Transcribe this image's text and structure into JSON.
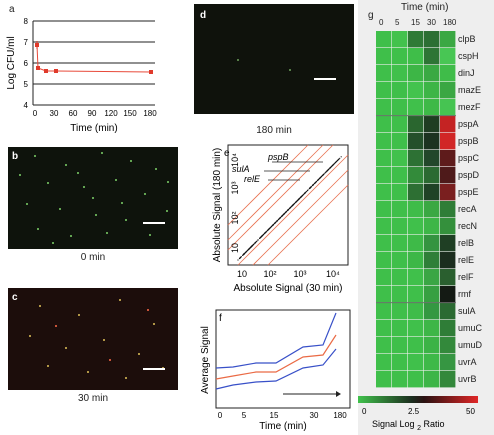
{
  "panel_labels": {
    "a": "a",
    "b": "b",
    "c": "c",
    "d": "d",
    "e": "e",
    "f": "f",
    "g": "g"
  },
  "panel_a": {
    "ylabel": "Log CFU/ml",
    "xlabel": "Time (min)",
    "yticks": [
      "4",
      "5",
      "6",
      "7",
      "8"
    ],
    "xticks": [
      "0",
      "30",
      "60",
      "90",
      "120",
      "150",
      "180"
    ]
  },
  "micrographs": {
    "b_caption": "0 min",
    "c_caption": "30 min",
    "d_caption": "180 min"
  },
  "panel_e": {
    "xlabel": "Absolute Signal (30 min)",
    "ylabel": "Absolute Signal (180 min)",
    "ticks": [
      "10",
      "10²",
      "10³",
      "10⁴"
    ],
    "genes": [
      "pspB",
      "sulA",
      "relE"
    ]
  },
  "panel_f": {
    "ylabel": "Average Signal",
    "xlabel": "Time (min)",
    "xticks": [
      "0",
      "5",
      "15",
      "30",
      "180"
    ]
  },
  "panel_g": {
    "title": "Time (min)",
    "time_points": [
      "0",
      "5",
      "15",
      "30",
      "180"
    ],
    "genes": [
      "clpB",
      "cspH",
      "dinJ",
      "mazE",
      "mezF",
      "pspA",
      "pspB",
      "pspC",
      "pspD",
      "pspE",
      "recA",
      "recN",
      "relB",
      "relE",
      "relF",
      "rmf",
      "sulA",
      "umuC",
      "umuD",
      "uvrA",
      "uvrB"
    ],
    "colorbar_ticks": [
      "0",
      "2.5",
      "50"
    ],
    "colorbar_label": "Signal Log",
    "colorbar_label_sub": "2",
    "colorbar_label_end": " Ratio",
    "heat_colors": [
      [
        "#3fbf4a",
        "#43c24d",
        "#2f7a36",
        "#2c6f33",
        "#3aa843"
      ],
      [
        "#3fbf4a",
        "#3fc04a",
        "#3fbe49",
        "#2e7535",
        "#48c654"
      ],
      [
        "#3fbf4a",
        "#40c04b",
        "#3db646",
        "#3aa943",
        "#3fbc49"
      ],
      [
        "#3fbf4a",
        "#3fbf4a",
        "#43c34e",
        "#3db546",
        "#3aa743"
      ],
      [
        "#3fbf4a",
        "#3fbf4a",
        "#40c04b",
        "#3eb947",
        "#46c452"
      ],
      [
        "#3fbf4a",
        "#3fbf4a",
        "#2a662f",
        "#1f3d22",
        "#c42323"
      ],
      [
        "#3fbf4a",
        "#3fbf4a",
        "#24502a",
        "#1c3320",
        "#d12626"
      ],
      [
        "#3fbf4a",
        "#41c14c",
        "#2d7134",
        "#22472a",
        "#5e1b1b"
      ],
      [
        "#3fbf4a",
        "#3fbf4a",
        "#338b3a",
        "#2b6a31",
        "#4e1a1a"
      ],
      [
        "#3fbf4a",
        "#3fbf4a",
        "#2d6f33",
        "#204326",
        "#7a1f1f"
      ],
      [
        "#3fbf4a",
        "#3fbf4a",
        "#3fbc49",
        "#3aa843",
        "#2f7d37"
      ],
      [
        "#3fbf4a",
        "#3fbf4a",
        "#40c04b",
        "#3db647",
        "#34903c"
      ],
      [
        "#3fbf4a",
        "#3fbf4a",
        "#3eba48",
        "#349440",
        "#1f3f24"
      ],
      [
        "#3fbf4a",
        "#3fbf4a",
        "#3db747",
        "#2f7f38",
        "#1b2d1e"
      ],
      [
        "#3fbf4a",
        "#3fbf4a",
        "#40c04b",
        "#3aa644",
        "#2a5f2f"
      ],
      [
        "#3fbf4a",
        "#3fbf4a",
        "#3fbf4a",
        "#37a041",
        "#141a14"
      ],
      [
        "#3fbf4a",
        "#3fbf4a",
        "#3fbc49",
        "#349841",
        "#2b6a32"
      ],
      [
        "#3fbf4a",
        "#3fbf4a",
        "#40c04b",
        "#3db647",
        "#2f7d37"
      ],
      [
        "#3fbf4a",
        "#3fbf4a",
        "#3fbf4a",
        "#3cb346",
        "#33893b"
      ],
      [
        "#3fbf4a",
        "#3fbf4a",
        "#40c04b",
        "#3eb948",
        "#369642"
      ],
      [
        "#3fbf4a",
        "#3fbf4a",
        "#3fbf4a",
        "#3db547",
        "#33883b"
      ]
    ]
  }
}
